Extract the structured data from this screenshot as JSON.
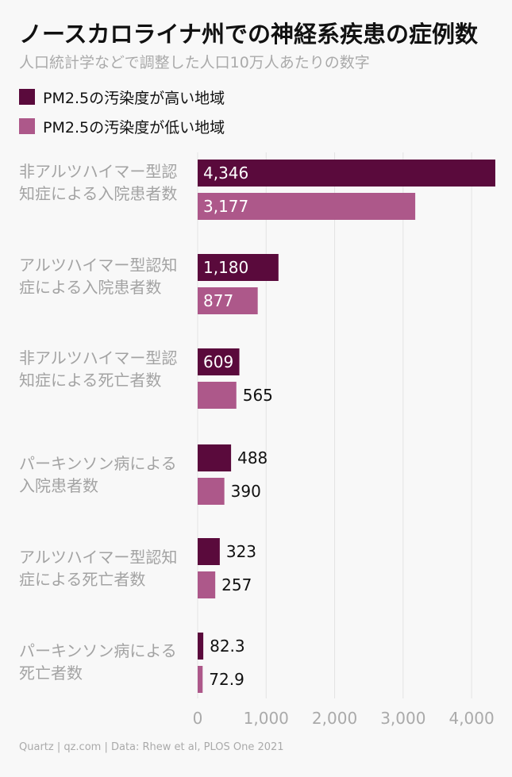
{
  "chart_data": {
    "type": "bar",
    "orientation": "horizontal",
    "title": "ノースカロライナ州での神経系疾患の症例数",
    "subtitle": "人口統計学などで調整した人口10万人あたりの数字",
    "categories": [
      "非アルツハイマー型認知症による入院患者数",
      "アルツハイマー型認知症による入院患者数",
      "非アルツハイマー型認知症による死亡者数",
      "パーキンソン病による入院患者数",
      "アルツハイマー型認知症による死亡者数",
      "パーキンソン病による死亡者数"
    ],
    "series": [
      {
        "name": "PM2.5の汚染度が高い地域",
        "color": "#5a0a3c",
        "values": [
          4346,
          1180,
          609,
          488,
          323,
          82.3
        ],
        "labels": [
          "4,346",
          "1,180",
          "609",
          "488",
          "323",
          "82.3"
        ]
      },
      {
        "name": "PM2.5の汚染度が低い地域",
        "color": "#ad588a",
        "values": [
          3177,
          877,
          565,
          390,
          257,
          72.9
        ],
        "labels": [
          "3,177",
          "877",
          "565",
          "390",
          "257",
          "72.9"
        ]
      }
    ],
    "xlim": [
      0,
      4300
    ],
    "xticks": [
      0,
      1000,
      2000,
      3000,
      4000
    ],
    "xtick_labels": [
      "0",
      "1,000",
      "2,000",
      "3,000",
      "4,000"
    ],
    "grid": true,
    "legend": "top-left"
  },
  "source": "Quartz | qz.com | Data: Rhew et al, PLOS One 2021"
}
